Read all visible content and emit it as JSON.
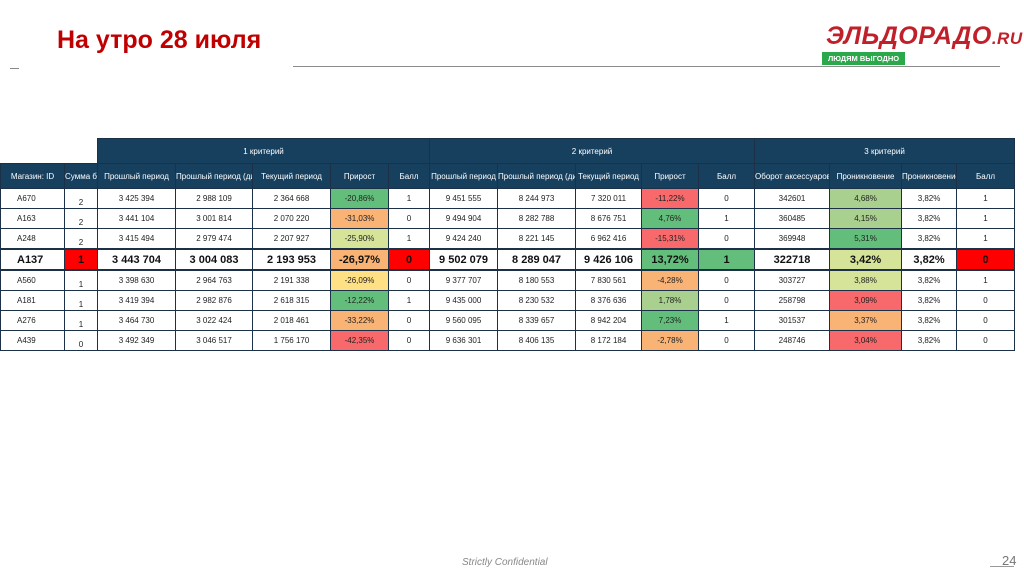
{
  "page": {
    "title": "На утро 28 июля",
    "footer": "Strictly Confidential",
    "page_number": "24"
  },
  "logo": {
    "brand": "ЭЛЬДОРАДО",
    "domain": ".RU",
    "slogan": "ЛЮДЯМ ВЫГОДНО"
  },
  "colors": {
    "title": "#c00000",
    "header_bg": "#17405f",
    "green": "#63be7b",
    "light_green": "#a9d08e",
    "yellow_green": "#d6e49a",
    "yellow": "#ffe084",
    "orange": "#f9b375",
    "red": "#f8696b",
    "bright_red": "#ff0000"
  },
  "table": {
    "criteria": [
      "1 критерий",
      "2 критерий",
      "3 критерий"
    ],
    "columns": [
      "Магазин: ID",
      "Сумма баллов",
      "Прошлый период",
      "Прошлый период (динамика)",
      "Текущий период",
      "Прирост",
      "Балл",
      "Прошлый период",
      "Прошлый период (динамика)",
      "Текущий период",
      "Прирост",
      "Балл",
      "Оборот аксессуаров",
      "Проникновение",
      "Проникновение",
      "Балл"
    ],
    "rows": [
      {
        "cells": [
          "A670",
          "2",
          "3 425 394",
          "2 988 109",
          "2 364 668",
          "-20,86%",
          "1",
          "9 451 555",
          "8 244 973",
          "7 320 011",
          "-11,22%",
          "0",
          "342601",
          "4,68%",
          "3,82%",
          "1"
        ]
      },
      {
        "cells": [
          "A163",
          "2",
          "3 441 104",
          "3 001 814",
          "2 070 220",
          "-31,03%",
          "0",
          "9 494 904",
          "8 282 788",
          "8 676 751",
          "4,76%",
          "1",
          "360485",
          "4,15%",
          "3,82%",
          "1"
        ]
      },
      {
        "cells": [
          "A248",
          "2",
          "3 415 494",
          "2 979 474",
          "2 207 927",
          "-25,90%",
          "1",
          "9 424 240",
          "8 221 145",
          "6 962 416",
          "-15,31%",
          "0",
          "369948",
          "5,31%",
          "3,82%",
          "1"
        ]
      },
      {
        "cells": [
          "A137",
          "1",
          "3 443 704",
          "3 004 083",
          "2 193 953",
          "-26,97%",
          "0",
          "9 502 079",
          "8 289 047",
          "9 426 106",
          "13,72%",
          "1",
          "322718",
          "3,42%",
          "3,82%",
          "0"
        ]
      },
      {
        "cells": [
          "A560",
          "1",
          "3 398 630",
          "2 964 763",
          "2 191 338",
          "-26,09%",
          "0",
          "9 377 707",
          "8 180 553",
          "7 830 561",
          "-4,28%",
          "0",
          "303727",
          "3,88%",
          "3,82%",
          "1"
        ]
      },
      {
        "cells": [
          "A181",
          "1",
          "3 419 394",
          "2 982 876",
          "2 618 315",
          "-12,22%",
          "1",
          "9 435 000",
          "8 230 532",
          "8 376 636",
          "1,78%",
          "0",
          "258798",
          "3,09%",
          "3,82%",
          "0"
        ]
      },
      {
        "cells": [
          "A276",
          "1",
          "3 464 730",
          "3 022 424",
          "2 018 461",
          "-33,22%",
          "0",
          "9 560 095",
          "8 339 657",
          "8 942 204",
          "7,23%",
          "1",
          "301537",
          "3,37%",
          "3,82%",
          "0"
        ]
      },
      {
        "cells": [
          "A439",
          "0",
          "3 492 349",
          "3 046 517",
          "1 756 170",
          "-42,35%",
          "0",
          "9 636 301",
          "8 406 135",
          "8 172 184",
          "-2,78%",
          "0",
          "248746",
          "3,04%",
          "3,82%",
          "0"
        ]
      }
    ]
  }
}
